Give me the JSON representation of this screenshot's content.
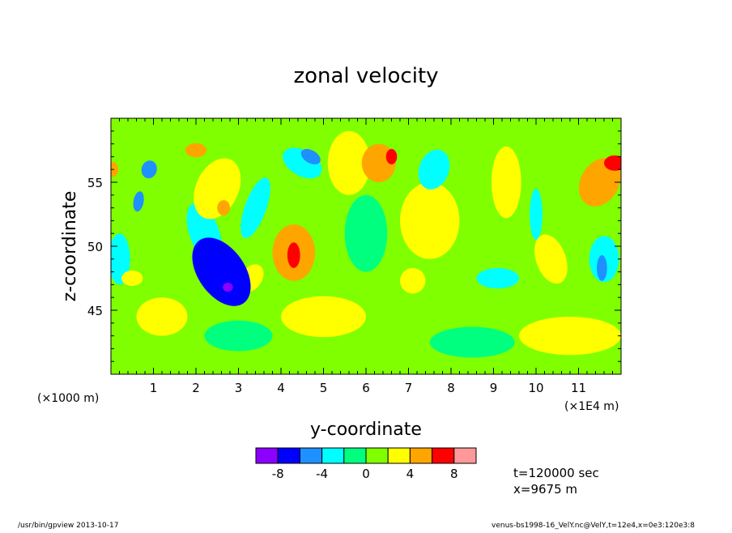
{
  "chart_data": {
    "type": "heatmap",
    "title": "zonal velocity",
    "xlabel": "y-coordinate",
    "ylabel": "z-coordinate",
    "x_unit_left": "(×1000 m)",
    "x_unit_right": "(×1E4 m)",
    "xlim": [
      0,
      12
    ],
    "ylim": [
      40,
      60
    ],
    "x_ticks": [
      "1",
      "2",
      "3",
      "4",
      "5",
      "6",
      "7",
      "8",
      "9",
      "10",
      "11"
    ],
    "x_tick_values": [
      1,
      2,
      3,
      4,
      5,
      6,
      7,
      8,
      9,
      10,
      11
    ],
    "y_ticks": [
      "45",
      "50",
      "55"
    ],
    "y_tick_values": [
      45,
      50,
      55
    ],
    "colorbar": {
      "levels": [
        -10,
        -8,
        -6,
        -4,
        -2,
        0,
        2,
        4,
        6,
        8,
        10
      ],
      "colors": [
        "#8b00ff",
        "#0000ff",
        "#1e90ff",
        "#00ffff",
        "#00ff7f",
        "#7fff00",
        "#ffff00",
        "#ffa500",
        "#ff0000",
        "#ff9999"
      ],
      "tick_labels": [
        "-8",
        "-4",
        "0",
        "4",
        "8"
      ],
      "tick_values": [
        -8,
        -4,
        0,
        4,
        8
      ]
    },
    "background_value": 0.8,
    "features": [
      {
        "x": 2.6,
        "y": 48.0,
        "value": -7.5,
        "rx": 0.55,
        "ry": 3.0,
        "rot": -35
      },
      {
        "x": 2.75,
        "y": 46.8,
        "value": -9.0,
        "rx": 0.12,
        "ry": 0.35,
        "rot": 0
      },
      {
        "x": 2.2,
        "y": 51.0,
        "value": -3.0,
        "rx": 0.35,
        "ry": 2.5,
        "rot": -20
      },
      {
        "x": 0.9,
        "y": 56.0,
        "value": -5.5,
        "rx": 0.18,
        "ry": 0.7,
        "rot": 15
      },
      {
        "x": 0.65,
        "y": 53.5,
        "value": -5.0,
        "rx": 0.12,
        "ry": 0.8,
        "rot": 10
      },
      {
        "x": 0.2,
        "y": 49.0,
        "value": -3.0,
        "rx": 0.25,
        "ry": 2.0,
        "rot": 0
      },
      {
        "x": 4.7,
        "y": 57.0,
        "value": -5.5,
        "rx": 0.25,
        "ry": 0.5,
        "rot": 30
      },
      {
        "x": 4.5,
        "y": 56.5,
        "value": -2.5,
        "rx": 0.5,
        "ry": 1.0,
        "rot": 30
      },
      {
        "x": 7.6,
        "y": 56.0,
        "value": -3.5,
        "rx": 0.35,
        "ry": 1.6,
        "rot": 20
      },
      {
        "x": 9.1,
        "y": 47.5,
        "value": -3.0,
        "rx": 0.5,
        "ry": 0.8,
        "rot": 0
      },
      {
        "x": 10.0,
        "y": 52.5,
        "value": -3.0,
        "rx": 0.15,
        "ry": 2.0,
        "rot": 0
      },
      {
        "x": 11.6,
        "y": 49.0,
        "value": -3.5,
        "rx": 0.35,
        "ry": 1.8,
        "rot": 0
      },
      {
        "x": 11.55,
        "y": 48.3,
        "value": -5.5,
        "rx": 0.12,
        "ry": 1.0,
        "rot": 0
      },
      {
        "x": 3.4,
        "y": 53.0,
        "value": -2.5,
        "rx": 0.25,
        "ry": 2.5,
        "rot": 20
      },
      {
        "x": 4.3,
        "y": 49.5,
        "value": 4.5,
        "rx": 0.5,
        "ry": 2.2,
        "rot": 0
      },
      {
        "x": 4.3,
        "y": 49.3,
        "value": 6.2,
        "rx": 0.15,
        "ry": 1.0,
        "rot": 0
      },
      {
        "x": 2.5,
        "y": 54.5,
        "value": 3.5,
        "rx": 0.5,
        "ry": 2.5,
        "rot": 25
      },
      {
        "x": 2.65,
        "y": 53.0,
        "value": 5.5,
        "rx": 0.15,
        "ry": 0.6,
        "rot": 0
      },
      {
        "x": 2.0,
        "y": 57.5,
        "value": 5.0,
        "rx": 0.25,
        "ry": 0.55,
        "rot": 0
      },
      {
        "x": 6.3,
        "y": 56.5,
        "value": 4.0,
        "rx": 0.4,
        "ry": 1.5,
        "rot": 0
      },
      {
        "x": 6.6,
        "y": 57.0,
        "value": 6.0,
        "rx": 0.13,
        "ry": 0.6,
        "rot": 0
      },
      {
        "x": 9.3,
        "y": 55.0,
        "value": 3.0,
        "rx": 0.35,
        "ry": 2.8,
        "rot": 0
      },
      {
        "x": 10.35,
        "y": 49.0,
        "value": 3.0,
        "rx": 0.35,
        "ry": 2.0,
        "rot": -20
      },
      {
        "x": 11.5,
        "y": 55.0,
        "value": 4.0,
        "rx": 0.45,
        "ry": 2.0,
        "rot": 30
      },
      {
        "x": 11.85,
        "y": 56.5,
        "value": 6.0,
        "rx": 0.25,
        "ry": 0.6,
        "rot": 0
      },
      {
        "x": 0.05,
        "y": 56.0,
        "value": 5.0,
        "rx": 0.12,
        "ry": 0.6,
        "rot": 0
      },
      {
        "x": 3.3,
        "y": 47.5,
        "value": 3.0,
        "rx": 0.25,
        "ry": 1.2,
        "rot": 35
      },
      {
        "x": 7.1,
        "y": 47.3,
        "value": 3.0,
        "rx": 0.3,
        "ry": 1.0,
        "rot": 30
      },
      {
        "x": 0.5,
        "y": 47.5,
        "value": 3.0,
        "rx": 0.25,
        "ry": 0.6,
        "rot": 0
      },
      {
        "x": 3.0,
        "y": 43.0,
        "value": -1.0,
        "rx": 0.8,
        "ry": 1.2,
        "rot": 0
      },
      {
        "x": 8.5,
        "y": 42.5,
        "value": -1.0,
        "rx": 1.0,
        "ry": 1.2,
        "rot": 0
      },
      {
        "x": 6.0,
        "y": 51.0,
        "value": -1.0,
        "rx": 0.5,
        "ry": 3.0,
        "rot": 0
      },
      {
        "x": 1.2,
        "y": 44.5,
        "value": 2.5,
        "rx": 0.6,
        "ry": 1.5,
        "rot": 0
      },
      {
        "x": 5.0,
        "y": 44.5,
        "value": 2.5,
        "rx": 1.0,
        "ry": 1.6,
        "rot": 0
      },
      {
        "x": 10.8,
        "y": 43.0,
        "value": 2.5,
        "rx": 1.2,
        "ry": 1.5,
        "rot": 0
      },
      {
        "x": 7.5,
        "y": 52.0,
        "value": 2.5,
        "rx": 0.7,
        "ry": 3.0,
        "rot": 0
      },
      {
        "x": 5.6,
        "y": 56.5,
        "value": 2.5,
        "rx": 0.5,
        "ry": 2.5,
        "rot": 0
      }
    ]
  },
  "info": {
    "time": "t=120000 sec",
    "position": "x=9675 m"
  },
  "footer": {
    "left": "/usr/bin/gpview   2013-10-17",
    "right": "venus-bs1998-16_VelY.nc@VelY,t=12e4,x=0e3:120e3:8"
  }
}
